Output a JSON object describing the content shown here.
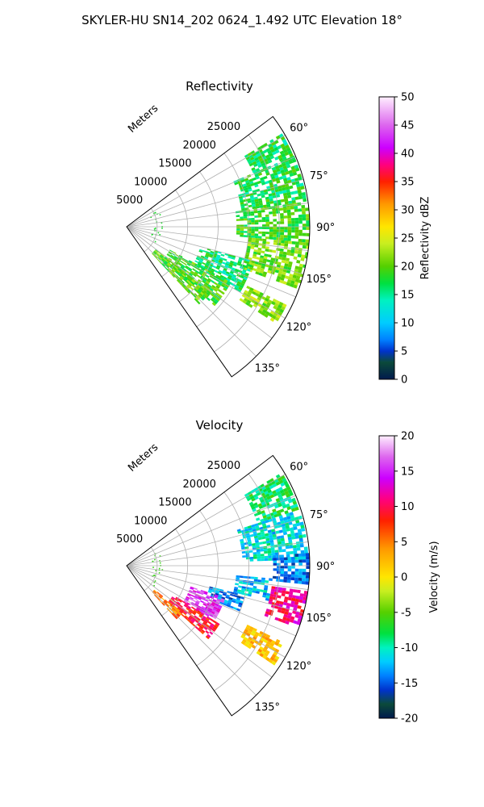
{
  "figure": {
    "suptitle": "SKYLER-HU  SN14_202  0624_1.492 UTC Elevation 18°"
  },
  "chart_data": [
    {
      "type": "heatmap",
      "projection": "polar-sector",
      "title": "Reflectivity",
      "range_label": "Meters",
      "range_ticks": [
        5000,
        10000,
        15000,
        20000,
        25000
      ],
      "range_max": 30000,
      "azimuth_ticks": [
        "60°",
        "75°",
        "90°",
        "105°",
        "120°",
        "135°"
      ],
      "azimuth_tick_values": [
        60,
        75,
        90,
        105,
        120,
        135
      ],
      "azimuth_range": [
        53,
        145
      ],
      "grid": true,
      "colorbar": {
        "label": "Reflectivity dBZ",
        "vmin": 0,
        "vmax": 50,
        "ticks": [
          0,
          5,
          10,
          15,
          20,
          25,
          30,
          35,
          40,
          45,
          50
        ],
        "stops": [
          [
            0,
            "#001a4d"
          ],
          [
            3,
            "#0b4a3a"
          ],
          [
            5,
            "#0033cc"
          ],
          [
            7,
            "#0080ff"
          ],
          [
            10,
            "#00ccff"
          ],
          [
            14,
            "#00f2c0"
          ],
          [
            17,
            "#00e040"
          ],
          [
            20,
            "#55d000"
          ],
          [
            24,
            "#c8ee20"
          ],
          [
            27,
            "#ffe600"
          ],
          [
            31,
            "#ff9900"
          ],
          [
            35,
            "#ff2000"
          ],
          [
            38,
            "#ff0080"
          ],
          [
            41,
            "#cc00ff"
          ],
          [
            45,
            "#dd66ee"
          ],
          [
            50,
            "#fff0ff"
          ]
        ]
      },
      "echo_regions": [
        {
          "az": [
            59,
            67
          ],
          "r": [
            22500,
            29500
          ],
          "level": 17
        },
        {
          "az": [
            67,
            82
          ],
          "r": [
            19000,
            29500
          ],
          "level": 17
        },
        {
          "az": [
            82,
            95
          ],
          "r": [
            18000,
            30000
          ],
          "level": 19
        },
        {
          "az": [
            95,
            110
          ],
          "r": [
            20000,
            30000
          ],
          "level": 21
        },
        {
          "az": [
            105,
            120
          ],
          "r": [
            12500,
            21000
          ],
          "level": 16
        },
        {
          "az": [
            118,
            132
          ],
          "r": [
            8000,
            19000
          ],
          "level": 19
        },
        {
          "az": [
            116,
            123
          ],
          "r": [
            22000,
            29000
          ],
          "level": 22
        },
        {
          "az": [
            128,
            137
          ],
          "r": [
            6000,
            17000
          ],
          "level": 20
        }
      ]
    },
    {
      "type": "heatmap",
      "projection": "polar-sector",
      "title": "Velocity",
      "range_label": "Meters",
      "range_ticks": [
        5000,
        10000,
        15000,
        20000,
        25000
      ],
      "range_max": 30000,
      "azimuth_ticks": [
        "60°",
        "75°",
        "90°",
        "105°",
        "120°",
        "135°"
      ],
      "azimuth_tick_values": [
        60,
        75,
        90,
        105,
        120,
        135
      ],
      "azimuth_range": [
        53,
        145
      ],
      "grid": true,
      "colorbar": {
        "label": "Velocity (m/s)",
        "vmin": -20,
        "vmax": 20,
        "ticks": [
          -20,
          -15,
          -10,
          -5,
          0,
          5,
          10,
          15,
          20
        ],
        "stops": [
          [
            -20,
            "#001a4d"
          ],
          [
            -18,
            "#0b4a3a"
          ],
          [
            -16,
            "#0033cc"
          ],
          [
            -14,
            "#0080ff"
          ],
          [
            -12,
            "#00ccff"
          ],
          [
            -10,
            "#00f2c0"
          ],
          [
            -8,
            "#00e040"
          ],
          [
            -5,
            "#55d000"
          ],
          [
            -2,
            "#c8ee20"
          ],
          [
            0,
            "#ffe600"
          ],
          [
            4,
            "#ff9900"
          ],
          [
            8,
            "#ff2000"
          ],
          [
            11,
            "#ff0080"
          ],
          [
            14,
            "#cc00ff"
          ],
          [
            17,
            "#dd66ee"
          ],
          [
            20,
            "#fff0ff"
          ]
        ]
      },
      "echo_regions": [
        {
          "az": [
            59,
            72
          ],
          "r": [
            22500,
            29500
          ],
          "level": -8
        },
        {
          "az": [
            72,
            88
          ],
          "r": [
            19000,
            29500
          ],
          "level": -11
        },
        {
          "az": [
            86,
            96
          ],
          "r": [
            24000,
            30000
          ],
          "level": -14
        },
        {
          "az": [
            95,
            104
          ],
          "r": [
            18000,
            24000
          ],
          "level": -12
        },
        {
          "az": [
            98,
            110
          ],
          "r": [
            24000,
            30000
          ],
          "level": 11
        },
        {
          "az": [
            104,
            112
          ],
          "r": [
            14000,
            20000
          ],
          "level": -14
        },
        {
          "az": [
            108,
            122
          ],
          "r": [
            11000,
            17000
          ],
          "level": 15
        },
        {
          "az": [
            116,
            124
          ],
          "r": [
            22000,
            29000
          ],
          "level": 2
        },
        {
          "az": [
            122,
            132
          ],
          "r": [
            9000,
            18000
          ],
          "level": 9
        },
        {
          "az": [
            130,
            137
          ],
          "r": [
            6000,
            12000
          ],
          "level": 5
        }
      ]
    }
  ]
}
